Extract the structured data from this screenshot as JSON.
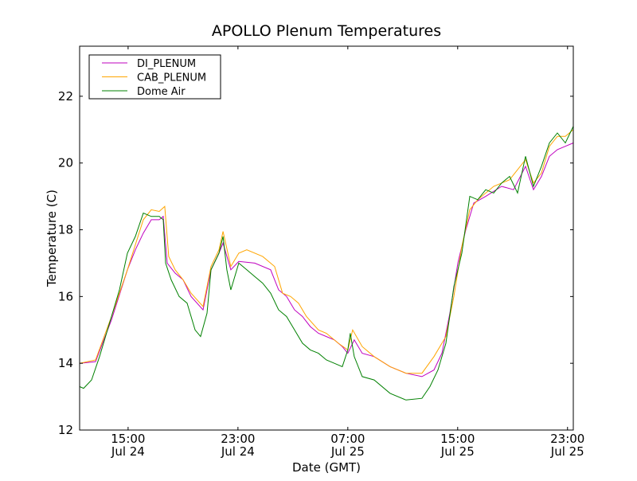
{
  "chart_data": {
    "type": "line",
    "title": "APOLLO Plenum Temperatures",
    "xlabel": "Date (GMT)",
    "ylabel": "Temperature (C)",
    "x_units": "hours since Jul 24 00:00 GMT",
    "xlim": [
      11.47,
      47.42
    ],
    "ylim": [
      12,
      23.5
    ],
    "grid": false,
    "legend_position": "top-left",
    "xticks": [
      {
        "value": 15,
        "time": "15:00",
        "date": "Jul 24"
      },
      {
        "value": 23,
        "time": "23:00",
        "date": "Jul 24"
      },
      {
        "value": 31,
        "time": "07:00",
        "date": "Jul 25"
      },
      {
        "value": 39,
        "time": "15:00",
        "date": "Jul 25"
      },
      {
        "value": 47,
        "time": "23:00",
        "date": "Jul 25"
      }
    ],
    "yticks": [
      12,
      14,
      16,
      18,
      20,
      22
    ],
    "series": [
      {
        "name": "DI_PLENUM",
        "color": "#bf00bf",
        "points": [
          [
            11.47,
            14.0
          ],
          [
            12.63,
            14.05
          ],
          [
            13.79,
            15.3
          ],
          [
            14.95,
            16.8
          ],
          [
            15.53,
            17.4
          ],
          [
            16.11,
            17.9
          ],
          [
            16.69,
            18.3
          ],
          [
            17.27,
            18.3
          ],
          [
            17.56,
            18.4
          ],
          [
            17.85,
            17.0
          ],
          [
            18.43,
            16.7
          ],
          [
            19.01,
            16.5
          ],
          [
            19.59,
            16.0
          ],
          [
            20.46,
            15.6
          ],
          [
            21.04,
            16.8
          ],
          [
            21.62,
            17.3
          ],
          [
            21.91,
            17.6
          ],
          [
            22.48,
            16.8
          ],
          [
            23.06,
            17.05
          ],
          [
            24.22,
            17.0
          ],
          [
            25.38,
            16.8
          ],
          [
            25.96,
            16.2
          ],
          [
            26.54,
            16.0
          ],
          [
            27.12,
            15.6
          ],
          [
            27.7,
            15.4
          ],
          [
            28.27,
            15.1
          ],
          [
            28.86,
            14.9
          ],
          [
            29.44,
            14.8
          ],
          [
            30.02,
            14.7
          ],
          [
            30.6,
            14.5
          ],
          [
            31.0,
            14.3
          ],
          [
            31.47,
            14.7
          ],
          [
            32.05,
            14.3
          ],
          [
            32.92,
            14.2
          ],
          [
            34.08,
            13.9
          ],
          [
            35.24,
            13.7
          ],
          [
            36.4,
            13.6
          ],
          [
            37.27,
            13.8
          ],
          [
            37.85,
            14.3
          ],
          [
            38.43,
            15.5
          ],
          [
            39.01,
            17.0
          ],
          [
            39.59,
            18.0
          ],
          [
            40.17,
            18.8
          ],
          [
            41.04,
            19.0
          ],
          [
            42.2,
            19.3
          ],
          [
            43.07,
            19.2
          ],
          [
            43.94,
            19.9
          ],
          [
            44.52,
            19.2
          ],
          [
            45.1,
            19.6
          ],
          [
            45.68,
            20.2
          ],
          [
            46.26,
            20.4
          ],
          [
            46.84,
            20.5
          ],
          [
            47.42,
            20.6
          ]
        ]
      },
      {
        "name": "CAB_PLENUM",
        "color": "#ffa500",
        "points": [
          [
            11.47,
            14.0
          ],
          [
            12.63,
            14.1
          ],
          [
            13.79,
            15.4
          ],
          [
            14.95,
            16.8
          ],
          [
            16.11,
            18.3
          ],
          [
            16.69,
            18.6
          ],
          [
            17.27,
            18.55
          ],
          [
            17.67,
            18.7
          ],
          [
            17.96,
            17.2
          ],
          [
            18.43,
            16.8
          ],
          [
            19.01,
            16.5
          ],
          [
            19.59,
            16.1
          ],
          [
            20.46,
            15.7
          ],
          [
            21.04,
            16.9
          ],
          [
            21.62,
            17.4
          ],
          [
            21.91,
            17.95
          ],
          [
            22.48,
            16.9
          ],
          [
            23.06,
            17.3
          ],
          [
            23.64,
            17.4
          ],
          [
            24.8,
            17.2
          ],
          [
            25.67,
            16.9
          ],
          [
            26.25,
            16.1
          ],
          [
            26.83,
            16.0
          ],
          [
            27.41,
            15.8
          ],
          [
            27.99,
            15.4
          ],
          [
            28.86,
            15.0
          ],
          [
            29.44,
            14.9
          ],
          [
            30.31,
            14.6
          ],
          [
            31.0,
            14.4
          ],
          [
            31.35,
            15.0
          ],
          [
            32.05,
            14.5
          ],
          [
            32.92,
            14.2
          ],
          [
            34.08,
            13.9
          ],
          [
            35.24,
            13.7
          ],
          [
            36.4,
            13.7
          ],
          [
            37.27,
            14.2
          ],
          [
            38.14,
            14.8
          ],
          [
            38.72,
            16.0
          ],
          [
            39.3,
            17.5
          ],
          [
            39.88,
            18.6
          ],
          [
            40.46,
            18.9
          ],
          [
            41.62,
            19.3
          ],
          [
            42.78,
            19.5
          ],
          [
            43.94,
            20.1
          ],
          [
            44.52,
            19.4
          ],
          [
            45.1,
            19.7
          ],
          [
            45.68,
            20.5
          ],
          [
            46.26,
            20.8
          ],
          [
            46.84,
            20.8
          ],
          [
            47.42,
            21.0
          ]
        ]
      },
      {
        "name": "Dome Air",
        "color": "#008000",
        "points": [
          [
            11.47,
            13.3
          ],
          [
            11.76,
            13.25
          ],
          [
            12.34,
            13.5
          ],
          [
            12.92,
            14.2
          ],
          [
            13.79,
            15.4
          ],
          [
            14.37,
            16.2
          ],
          [
            14.95,
            17.3
          ],
          [
            15.53,
            17.8
          ],
          [
            16.11,
            18.5
          ],
          [
            16.69,
            18.4
          ],
          [
            17.27,
            18.4
          ],
          [
            17.56,
            18.3
          ],
          [
            17.73,
            17.0
          ],
          [
            18.14,
            16.5
          ],
          [
            18.72,
            16.0
          ],
          [
            19.3,
            15.8
          ],
          [
            19.88,
            15.0
          ],
          [
            20.28,
            14.8
          ],
          [
            20.75,
            15.5
          ],
          [
            21.04,
            16.8
          ],
          [
            21.62,
            17.3
          ],
          [
            21.91,
            17.8
          ],
          [
            22.19,
            16.8
          ],
          [
            22.48,
            16.2
          ],
          [
            23.06,
            17.0
          ],
          [
            23.64,
            16.8
          ],
          [
            24.22,
            16.6
          ],
          [
            24.8,
            16.4
          ],
          [
            25.38,
            16.1
          ],
          [
            25.96,
            15.6
          ],
          [
            26.54,
            15.4
          ],
          [
            27.12,
            15.0
          ],
          [
            27.7,
            14.6
          ],
          [
            28.27,
            14.4
          ],
          [
            28.86,
            14.3
          ],
          [
            29.44,
            14.1
          ],
          [
            30.02,
            14.0
          ],
          [
            30.6,
            13.9
          ],
          [
            31.0,
            14.4
          ],
          [
            31.18,
            14.9
          ],
          [
            31.47,
            14.2
          ],
          [
            32.05,
            13.6
          ],
          [
            32.92,
            13.5
          ],
          [
            34.08,
            13.1
          ],
          [
            35.24,
            12.9
          ],
          [
            36.4,
            12.95
          ],
          [
            36.98,
            13.3
          ],
          [
            37.56,
            13.8
          ],
          [
            38.14,
            14.6
          ],
          [
            38.72,
            16.3
          ],
          [
            39.3,
            17.3
          ],
          [
            39.88,
            19.0
          ],
          [
            40.46,
            18.9
          ],
          [
            41.04,
            19.2
          ],
          [
            41.62,
            19.1
          ],
          [
            42.2,
            19.4
          ],
          [
            42.78,
            19.6
          ],
          [
            43.36,
            19.1
          ],
          [
            43.94,
            20.2
          ],
          [
            44.52,
            19.3
          ],
          [
            45.1,
            19.9
          ],
          [
            45.68,
            20.6
          ],
          [
            46.26,
            20.9
          ],
          [
            46.84,
            20.6
          ],
          [
            47.42,
            21.1
          ]
        ]
      }
    ]
  }
}
